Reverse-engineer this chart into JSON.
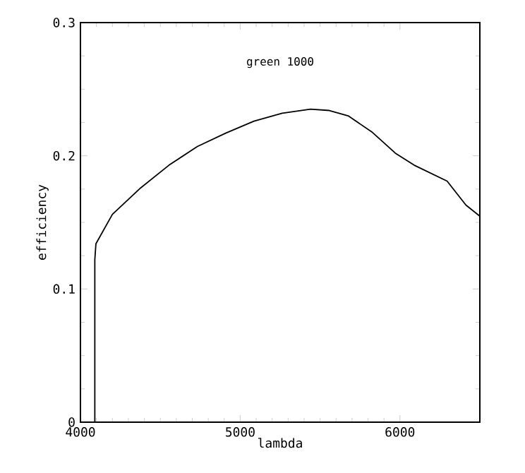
{
  "chart_data": {
    "type": "line",
    "xlabel": "lambda",
    "ylabel": "efficiency",
    "annotations": [
      "green 1000"
    ],
    "xlim": [
      4000,
      6500
    ],
    "ylim": [
      0,
      0.3
    ],
    "xticks": [
      4000,
      5000,
      6000
    ],
    "yticks": [
      0,
      0.1,
      0.2,
      0.3
    ],
    "series": [
      {
        "color": "#000000",
        "x": [
          4090,
          4090,
          4097,
          4200,
          4378,
          4555,
          4732,
          4909,
          5086,
          5263,
          5440,
          5558,
          5676,
          5823,
          5971,
          6088,
          6295,
          6413,
          6496,
          6500,
          6500
        ],
        "values": [
          0,
          0.122,
          0.134,
          0.156,
          0.176,
          0.193,
          0.207,
          0.217,
          0.226,
          0.232,
          0.235,
          0.234,
          0.23,
          0.218,
          0.202,
          0.193,
          0.181,
          0.163,
          0.155,
          0.155,
          0
        ]
      }
    ]
  }
}
